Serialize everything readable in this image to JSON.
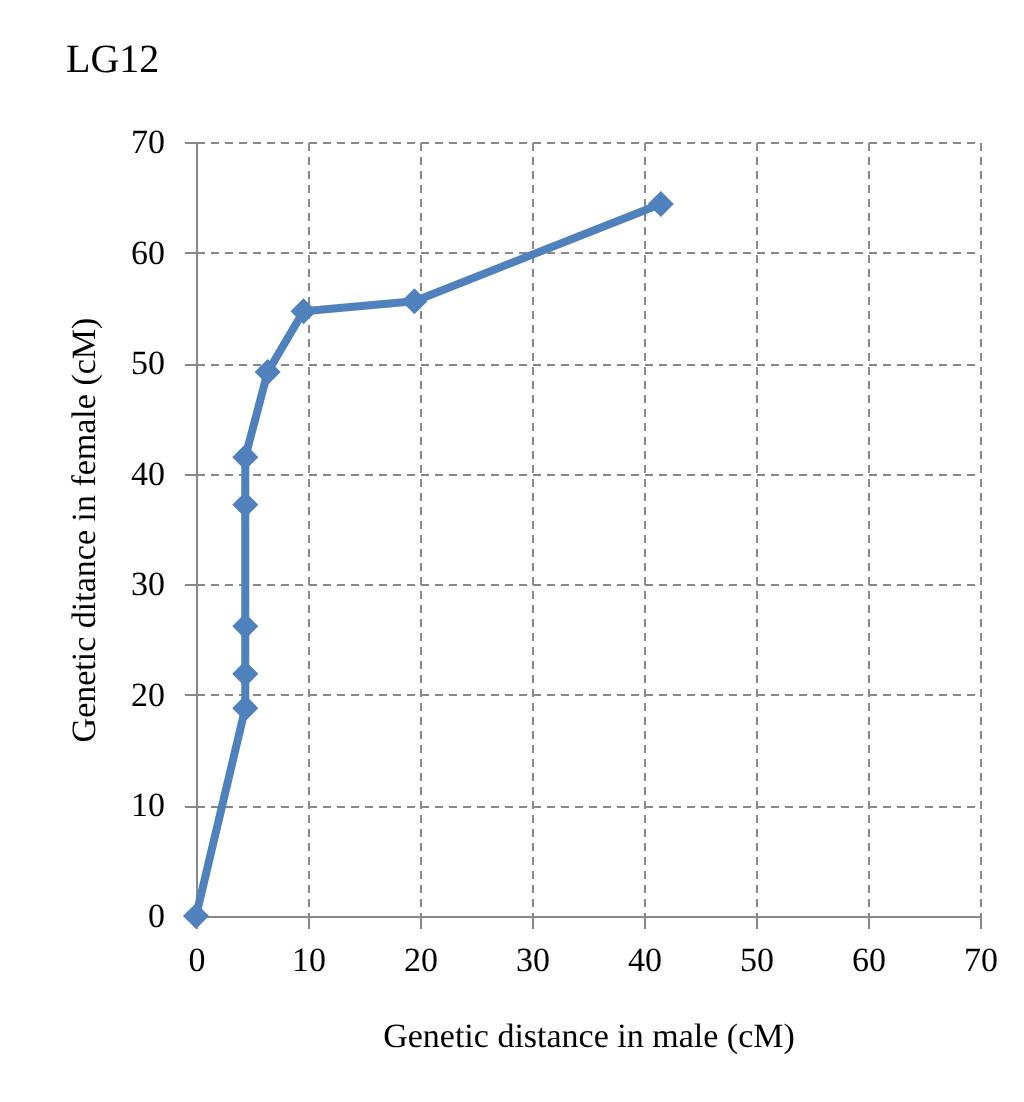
{
  "chart_data": {
    "type": "line",
    "title": "LG12",
    "xlabel": "Genetic distance in male (cM)",
    "ylabel": "Genetic ditance in female (cM)",
    "x": [
      0,
      4.4,
      4.4,
      4.4,
      4.4,
      4.4,
      6.4,
      9.6,
      19.5,
      41.5
    ],
    "series": [
      {
        "color": "#4f81bd",
        "values": [
          0,
          18.8,
          21.9,
          26.2,
          37.2,
          41.5,
          49.2,
          54.7,
          55.6,
          64.4
        ]
      }
    ],
    "xlim": [
      0,
      70
    ],
    "ylim": [
      0,
      70
    ],
    "xticks": [
      0,
      10,
      20,
      30,
      40,
      50,
      60,
      70
    ],
    "yticks": [
      0,
      10,
      20,
      30,
      40,
      50,
      60,
      70
    ],
    "grid": true,
    "marker": "diamond",
    "line_style": "solid"
  }
}
